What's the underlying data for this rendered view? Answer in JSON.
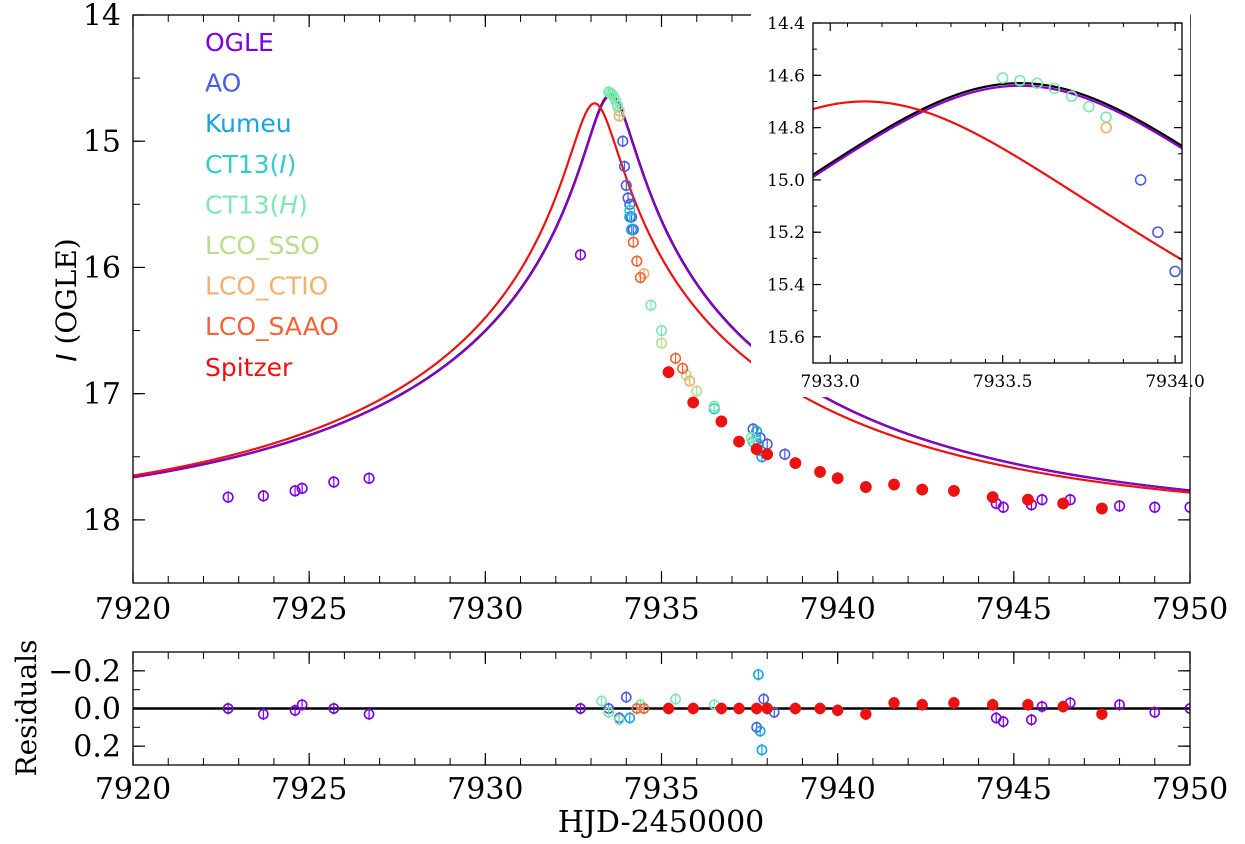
{
  "chart_data": [
    {
      "id": "main",
      "type": "scatter",
      "ylabel_italic": "I",
      "ylabel_rest": " (OGLE)",
      "xlim": [
        7920,
        7950
      ],
      "ylim": [
        18.5,
        14
      ],
      "y_inverted": true,
      "xticks": [
        7920,
        7925,
        7930,
        7935,
        7940,
        7945,
        7950
      ],
      "xtick_labels": [
        "7920",
        "7925",
        "7930",
        "7935",
        "7940",
        "7945",
        "7950"
      ],
      "yticks": [
        14,
        15,
        16,
        17,
        18
      ],
      "ytick_labels": [
        "14",
        "15",
        "16",
        "17",
        "18"
      ],
      "legend_placement": "upper-left",
      "grid": false,
      "legend": [
        {
          "label": "OGLE",
          "italic": "",
          "suffix": "",
          "color": "#7b00e6"
        },
        {
          "label": "AO",
          "italic": "",
          "suffix": "",
          "color": "#4a5ee0"
        },
        {
          "label": "Kumeu",
          "italic": "",
          "suffix": "",
          "color": "#1aa3e0"
        },
        {
          "label": "CT13(",
          "italic": "I",
          "suffix": ")",
          "color": "#33cccc"
        },
        {
          "label": "CT13(",
          "italic": "H",
          "suffix": ")",
          "color": "#7de8b0"
        },
        {
          "label": "LCO_SSO",
          "italic": "",
          "suffix": "",
          "color": "#b5e08a"
        },
        {
          "label": "LCO_CTIO",
          "italic": "",
          "suffix": "",
          "color": "#f5b06a"
        },
        {
          "label": "LCO_SAAO",
          "italic": "",
          "suffix": "",
          "color": "#f0643a"
        },
        {
          "label": "Spitzer",
          "italic": "",
          "suffix": "",
          "color": "#ee1111"
        }
      ],
      "series": [
        {
          "name": "OGLE",
          "marker": "open-circle",
          "color": "#7b00e6",
          "x": [
            7922.7,
            7923.7,
            7924.6,
            7924.8,
            7925.7,
            7926.7,
            7932.7,
            7944.5,
            7944.7,
            7945.5,
            7945.8,
            7946.6,
            7948.0,
            7949.0,
            7950.0
          ],
          "y": [
            17.82,
            17.81,
            17.77,
            17.75,
            17.7,
            17.67,
            15.9,
            17.87,
            17.9,
            17.88,
            17.84,
            17.84,
            17.89,
            17.9,
            17.9
          ]
        },
        {
          "name": "AO",
          "marker": "open-circle",
          "color": "#4a5ee0",
          "x": [
            7933.9,
            7933.95,
            7934.0,
            7934.05,
            7934.1,
            7934.15,
            7934.2,
            7937.6,
            7937.8,
            7938.0,
            7938.5
          ],
          "y": [
            15.0,
            15.2,
            15.35,
            15.45,
            15.5,
            15.6,
            15.7,
            17.28,
            17.35,
            17.4,
            17.48
          ]
        },
        {
          "name": "Kumeu",
          "marker": "open-circle",
          "color": "#1aa3e0",
          "x": [
            7934.1,
            7934.15,
            7937.7,
            7937.75,
            7937.8,
            7937.85
          ],
          "y": [
            15.6,
            15.7,
            17.3,
            17.4,
            17.45,
            17.5
          ]
        },
        {
          "name": "CT13(I)",
          "marker": "open-circle",
          "color": "#33cccc",
          "x": [
            7934.1,
            7936.5,
            7937.6
          ],
          "y": [
            15.55,
            17.12,
            17.38
          ]
        },
        {
          "name": "CT13(H)",
          "marker": "open-circle",
          "color": "#7de8b0",
          "x": [
            7933.5,
            7933.55,
            7933.6,
            7933.65,
            7933.7,
            7933.75,
            7933.8,
            7934.7,
            7935.0,
            7936.5,
            7937.55
          ],
          "y": [
            14.61,
            14.62,
            14.63,
            14.65,
            14.68,
            14.72,
            14.76,
            16.3,
            16.5,
            17.1,
            17.35
          ]
        },
        {
          "name": "LCO_SSO",
          "marker": "open-circle",
          "color": "#b5e08a",
          "x": [
            7935.0,
            7935.7,
            7936.0
          ],
          "y": [
            16.6,
            16.85,
            16.98
          ]
        },
        {
          "name": "LCO_CTIO",
          "marker": "open-circle",
          "color": "#f5b06a",
          "x": [
            7933.8,
            7934.5,
            7935.8
          ],
          "y": [
            14.8,
            16.05,
            16.9
          ]
        },
        {
          "name": "LCO_SAAO",
          "marker": "open-circle",
          "color": "#f0643a",
          "x": [
            7934.2,
            7934.3,
            7934.4,
            7935.4,
            7935.6
          ],
          "y": [
            15.8,
            15.95,
            16.08,
            16.72,
            16.8
          ]
        },
        {
          "name": "Spitzer",
          "marker": "filled-circle",
          "color": "#ee1111",
          "x": [
            7935.2,
            7935.9,
            7936.7,
            7937.2,
            7937.7,
            7938.0,
            7938.8,
            7939.5,
            7940.0,
            7940.8,
            7941.6,
            7942.4,
            7943.3,
            7944.4,
            7945.4,
            7946.4,
            7947.5
          ],
          "y": [
            16.83,
            17.07,
            17.22,
            17.38,
            17.44,
            17.48,
            17.55,
            17.62,
            17.67,
            17.74,
            17.72,
            17.76,
            17.77,
            17.82,
            17.84,
            17.87,
            17.91
          ]
        }
      ],
      "models": [
        {
          "color": "#000000",
          "peak_t": 7933.55,
          "peak_mag": 14.63
        },
        {
          "color": "#8800cc",
          "peak_t": 7933.55,
          "peak_mag": 14.64
        },
        {
          "color": "#ee1111",
          "peak_t": 7933.1,
          "peak_mag": 14.7
        }
      ]
    },
    {
      "id": "inset",
      "type": "scatter",
      "xlim": [
        7932.95,
        7934.02
      ],
      "ylim": [
        15.7,
        14.4
      ],
      "y_inverted": true,
      "xticks": [
        7933.0,
        7933.5,
        7934.0
      ],
      "xtick_labels": [
        "7933.0",
        "7933.5",
        "7934.0"
      ],
      "yticks": [
        14.4,
        14.6,
        14.8,
        15.0,
        15.2,
        15.4,
        15.6
      ],
      "ytick_labels": [
        "14.4",
        "14.6",
        "14.8",
        "15.0",
        "15.2",
        "15.4",
        "15.6"
      ]
    },
    {
      "id": "residuals",
      "type": "scatter",
      "ylabel": "Residuals",
      "xlabel": "HJD-2450000",
      "xlim": [
        7920,
        7950
      ],
      "ylim": [
        0.3,
        -0.3
      ],
      "y_inverted": true,
      "xticks": [
        7920,
        7925,
        7930,
        7935,
        7940,
        7945,
        7950
      ],
      "xtick_labels": [
        "7920",
        "7925",
        "7930",
        "7935",
        "7940",
        "7945",
        "7950"
      ],
      "yticks": [
        -0.2,
        0.0,
        0.2
      ],
      "ytick_labels": [
        "−0.2",
        "0.0",
        "0.2"
      ],
      "series": [
        {
          "name": "OGLE",
          "marker": "open-circle",
          "color": "#7b00e6",
          "x": [
            7922.7,
            7923.7,
            7924.6,
            7924.8,
            7925.7,
            7926.7,
            7932.7,
            7944.5,
            7944.7,
            7945.5,
            7945.8,
            7946.6,
            7948.0,
            7949.0,
            7950.0
          ],
          "y": [
            0.0,
            0.03,
            0.01,
            -0.02,
            0.0,
            0.03,
            0.0,
            0.05,
            0.07,
            0.06,
            -0.01,
            -0.03,
            -0.02,
            0.02,
            0.0
          ]
        },
        {
          "name": "AO",
          "marker": "open-circle",
          "color": "#4a5ee0",
          "x": [
            7933.5,
            7933.8,
            7934.0,
            7937.7,
            7937.9,
            7938.2
          ],
          "y": [
            0.0,
            0.05,
            -0.06,
            0.1,
            -0.05,
            0.02
          ]
        },
        {
          "name": "Kumeu",
          "marker": "open-circle",
          "color": "#1aa3e0",
          "x": [
            7934.1,
            7937.75,
            7937.8,
            7937.85
          ],
          "y": [
            0.05,
            -0.18,
            0.12,
            0.22
          ]
        },
        {
          "name": "CT13(H)",
          "marker": "open-circle",
          "color": "#7de8b0",
          "x": [
            7933.3,
            7933.5,
            7933.8,
            7934.4,
            7935.4,
            7936.5
          ],
          "y": [
            -0.04,
            0.02,
            0.06,
            -0.02,
            -0.05,
            -0.02
          ]
        },
        {
          "name": "LCO_SAAO",
          "marker": "open-circle",
          "color": "#f0643a",
          "x": [
            7934.3,
            7934.5
          ],
          "y": [
            0.0,
            0.0
          ]
        },
        {
          "name": "Spitzer",
          "marker": "filled-circle",
          "color": "#ee1111",
          "x": [
            7935.2,
            7935.9,
            7936.7,
            7937.2,
            7937.7,
            7938.0,
            7938.8,
            7939.5,
            7940.0,
            7940.8,
            7941.6,
            7942.4,
            7943.3,
            7944.4,
            7945.4,
            7946.4,
            7947.5
          ],
          "y": [
            0.0,
            0.0,
            0.0,
            0.0,
            0.0,
            0.0,
            0.0,
            0.0,
            0.01,
            0.03,
            -0.03,
            -0.02,
            -0.03,
            -0.02,
            -0.02,
            -0.01,
            0.03
          ]
        }
      ]
    }
  ]
}
